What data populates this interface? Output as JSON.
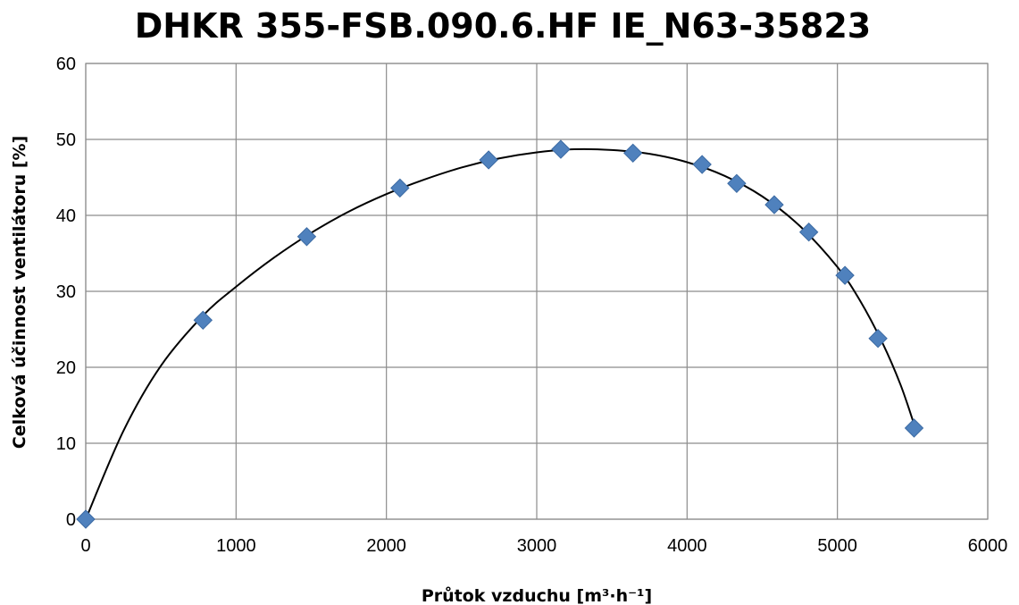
{
  "chart_data": {
    "type": "scatter",
    "title": "DHKR 355-FSB.090.6.HF IE_N63-35823",
    "xlabel": "Průtok vzduchu [m³·h⁻¹]",
    "ylabel": "Celková účinnost ventilátoru [%]",
    "xlim": [
      0,
      6000
    ],
    "ylim": [
      0,
      60
    ],
    "xticks": [
      0,
      1000,
      2000,
      3000,
      4000,
      5000,
      6000
    ],
    "yticks": [
      0,
      10,
      20,
      30,
      40,
      50,
      60
    ],
    "grid": true,
    "legend": "none",
    "series": [
      {
        "marker": "diamond",
        "color": "#4f81bd",
        "points": [
          {
            "x": 0,
            "y": 0
          },
          {
            "x": 780,
            "y": 26.2
          },
          {
            "x": 1470,
            "y": 37.2
          },
          {
            "x": 2090,
            "y": 43.6
          },
          {
            "x": 2680,
            "y": 47.3
          },
          {
            "x": 3160,
            "y": 48.7
          },
          {
            "x": 3640,
            "y": 48.2
          },
          {
            "x": 4100,
            "y": 46.7
          },
          {
            "x": 4330,
            "y": 44.2
          },
          {
            "x": 4580,
            "y": 41.4
          },
          {
            "x": 4810,
            "y": 37.8
          },
          {
            "x": 5050,
            "y": 32.1
          },
          {
            "x": 5270,
            "y": 23.8
          },
          {
            "x": 5510,
            "y": 12.0
          }
        ]
      }
    ],
    "trendline": {
      "color": "#000000",
      "points": [
        {
          "x": 0,
          "y": 0
        },
        {
          "x": 250,
          "y": 11.6
        },
        {
          "x": 500,
          "y": 20.2
        },
        {
          "x": 780,
          "y": 26.8
        },
        {
          "x": 1000,
          "y": 30.6
        },
        {
          "x": 1250,
          "y": 34.4
        },
        {
          "x": 1500,
          "y": 37.7
        },
        {
          "x": 1750,
          "y": 40.5
        },
        {
          "x": 2000,
          "y": 42.8
        },
        {
          "x": 2250,
          "y": 44.7
        },
        {
          "x": 2500,
          "y": 46.3
        },
        {
          "x": 2750,
          "y": 47.5
        },
        {
          "x": 3000,
          "y": 48.3
        },
        {
          "x": 3250,
          "y": 48.7
        },
        {
          "x": 3500,
          "y": 48.6
        },
        {
          "x": 3750,
          "y": 48.1
        },
        {
          "x": 4000,
          "y": 47.0
        },
        {
          "x": 4250,
          "y": 45.2
        },
        {
          "x": 4500,
          "y": 42.5
        },
        {
          "x": 4750,
          "y": 38.6
        },
        {
          "x": 5000,
          "y": 33.2
        },
        {
          "x": 5150,
          "y": 28.8
        },
        {
          "x": 5300,
          "y": 23.2
        },
        {
          "x": 5420,
          "y": 17.7
        },
        {
          "x": 5510,
          "y": 12.5
        }
      ]
    }
  }
}
